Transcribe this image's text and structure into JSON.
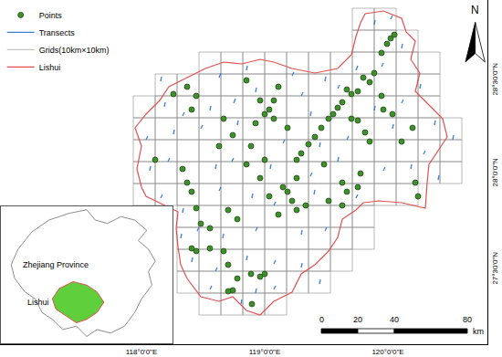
{
  "chart_data": {
    "type": "map",
    "xlim": [
      0,
      267
    ],
    "ylim": [
      0,
      188.5
    ],
    "xticks": [
      {
        "value": 77.5,
        "label": "118°0'0\"E"
      },
      {
        "value": 145,
        "label": "119°0'0\"E"
      },
      {
        "value": 212.5,
        "label": "120°0'0\"E"
      }
    ],
    "yticks": [
      {
        "value": 41,
        "label": "27°30'0\"N"
      },
      {
        "value": 93.5,
        "label": "28°0'0\"N"
      },
      {
        "value": 144.5,
        "label": "28°30'0\"N"
      }
    ],
    "grid": false,
    "legend": "upper left",
    "series": [
      {
        "name": "Points",
        "type": "scatter",
        "color": "#3f8f2a",
        "marker": "circle",
        "x": [
          214,
          216,
          212,
          209,
          205,
          202.5,
          199,
          196,
          192.5,
          190,
          187.5,
          185,
          182.5,
          180,
          176,
          172.5,
          169,
          165,
          162.5,
          192.5,
          196,
          200,
          202.5,
          209,
          210,
          215,
          220,
          226,
          227.5,
          229,
          197.5,
          196,
          190,
          187.5,
          135,
          152.5,
          150,
          147.5,
          150,
          145,
          157.5,
          142.5,
          140,
          120,
          127.5,
          122.5,
          107.5,
          105,
          102.5,
          95,
          85,
          100,
          102.5,
          105,
          107.5,
          110,
          115,
          125,
          130,
          142.5,
          147.5,
          155,
          157.5,
          160,
          162.5,
          152.5,
          167.5,
          177.5,
          180,
          187.5,
          137.5,
          135,
          145,
          162.5,
          105,
          107.5,
          115,
          125,
          130,
          127.5,
          125,
          137.5,
          142.5,
          145,
          138,
          122.5
        ],
        "y": [
          167.5,
          169.5,
          164.5,
          159.5,
          148.5,
          143.5,
          146,
          138.5,
          137,
          139.5,
          132.5,
          129.5,
          126,
          123.5,
          118.5,
          113.5,
          109.5,
          104.5,
          101,
          123.5,
          122.5,
          116,
          111,
          136,
          128.5,
          126,
          111,
          118.5,
          88.5,
          81,
          93.5,
          86,
          83.5,
          88.5,
          144.5,
          141,
          133.5,
          128.5,
          123.5,
          126,
          118.5,
          133.5,
          121,
          108.5,
          114.5,
          123.5,
          136,
          128.5,
          141,
          137,
          101,
          96,
          88.5,
          83.5,
          74.5,
          66,
          63.5,
          73.5,
          68.5,
          91,
          81,
          86,
          83.5,
          78.5,
          73.5,
          71,
          76,
          98.5,
          78.5,
          76,
          108.5,
          98.5,
          101,
          91,
          52.5,
          51,
          52.5,
          43.5,
          36,
          29.5,
          29,
          38.5,
          37,
          38.5,
          22,
          51
        ]
      },
      {
        "name": "Transects",
        "type": "segments",
        "color": "#3d7fd6",
        "segments": [
          [
            205,
            175,
            205.5,
            177.5
          ],
          [
            214,
            178,
            215,
            180
          ],
          [
            220,
            162,
            220.5,
            164.5
          ],
          [
            209,
            152,
            210,
            154
          ],
          [
            120,
            146,
            121,
            148.5
          ],
          [
            135,
            150,
            135.5,
            152.5
          ],
          [
            160,
            147,
            161,
            149
          ],
          [
            178,
            144,
            178.5,
            146.5
          ],
          [
            195,
            150,
            196,
            152.5
          ],
          [
            230,
            140,
            230.5,
            142.5
          ],
          [
            90,
            130,
            90.5,
            132.5
          ],
          [
            100,
            125,
            101,
            127
          ],
          [
            115,
            128,
            115.5,
            130.5
          ],
          [
            128,
            132,
            129,
            134.5
          ],
          [
            140,
            138,
            140.5,
            140.5
          ],
          [
            165,
            136,
            166,
            138
          ],
          [
            170,
            125,
            170.5,
            127.5
          ],
          [
            185,
            140,
            186,
            142
          ],
          [
            205,
            128,
            205.5,
            130.5
          ],
          [
            220,
            132,
            221,
            134
          ],
          [
            238,
            120,
            238.5,
            122.5
          ],
          [
            80,
            112,
            81,
            114
          ],
          [
            95,
            115,
            95.5,
            117.5
          ],
          [
            110,
            118,
            111,
            120
          ],
          [
            130,
            120,
            130.5,
            122.5
          ],
          [
            155,
            110,
            156,
            112
          ],
          [
            175,
            108,
            175.5,
            110.5
          ],
          [
            190,
            112,
            191,
            114
          ],
          [
            215,
            118,
            215.5,
            120.5
          ],
          [
            232,
            104,
            233,
            106
          ],
          [
            82,
            95,
            82.5,
            97.5
          ],
          [
            92,
            100,
            93,
            102
          ],
          [
            118,
            96,
            118.5,
            98.5
          ],
          [
            127,
            100,
            128,
            102
          ],
          [
            148,
            96,
            148.5,
            98.5
          ],
          [
            170,
            92,
            171,
            94
          ],
          [
            185,
            100,
            185.5,
            102.5
          ],
          [
            210,
            95,
            211,
            97
          ],
          [
            225,
            96,
            225.5,
            98.5
          ],
          [
            88,
            80,
            89,
            82
          ],
          [
            100,
            72,
            100.5,
            74.5
          ],
          [
            120,
            84,
            121,
            86
          ],
          [
            138,
            80,
            138.5,
            82.5
          ],
          [
            150,
            76,
            151,
            78
          ],
          [
            172,
            82,
            172.5,
            84.5
          ],
          [
            195,
            80,
            196,
            82
          ],
          [
            99,
            58,
            99.5,
            60.5
          ],
          [
            108,
            62,
            109,
            64
          ],
          [
            122,
            58,
            122.5,
            60.5
          ],
          [
            140,
            62,
            141,
            64
          ],
          [
            165,
            60,
            165.5,
            62.5
          ],
          [
            178,
            62,
            179,
            64
          ],
          [
            105,
            45,
            105.5,
            47.5
          ],
          [
            118,
            40,
            119,
            42
          ],
          [
            135,
            46,
            135.5,
            48.5
          ],
          [
            150,
            44,
            151,
            46
          ],
          [
            165,
            42,
            165.5,
            44.5
          ],
          [
            115,
            30,
            116,
            32
          ],
          [
            140,
            28,
            140.5,
            30.5
          ],
          [
            150,
            30,
            151,
            32
          ],
          [
            132,
            22,
            132.5,
            24.5
          ],
          [
            88,
            144,
            88.5,
            146.5
          ],
          [
            248,
            112,
            248.5,
            114.5
          ],
          [
            240,
            90,
            240.5,
            92.5
          ],
          [
            175,
            33,
            175.5,
            35.5
          ]
        ]
      },
      {
        "name": "Grids(10km×10km)",
        "type": "grid",
        "color": "#8c8c8c",
        "cell": 12,
        "x0": 73,
        "y0": 16,
        "rows": [
          [
            3,
            6
          ],
          [
            2,
            8
          ],
          [
            2,
            9
          ],
          [
            2,
            10
          ],
          [
            2,
            10
          ],
          [
            0,
            12
          ],
          [
            0,
            14
          ],
          [
            0,
            14
          ],
          [
            0,
            14
          ],
          [
            0,
            13
          ],
          [
            1,
            13
          ],
          [
            3,
            13
          ],
          [
            10,
            12
          ],
          [
            10,
            11
          ]
        ]
      },
      {
        "name": "Lishui",
        "type": "polygon",
        "color": "#e05050",
        "x": [
          200,
          210,
          220,
          222.5,
          227.5,
          225,
          230,
          227.5,
          235,
          242.5,
          245,
          240,
          235,
          234,
          233,
          220,
          207.5,
          199,
          195,
          187.5,
          185,
          180,
          172.5,
          165,
          160,
          150,
          142.5,
          135,
          127.5,
          120,
          110,
          102.5,
          99,
          97.5,
          96.5,
          97.5,
          87.5,
          80,
          77.5,
          75,
          77.5,
          74,
          80,
          87.5,
          92.5,
          102.5,
          112.5,
          122.5,
          132.5,
          142.5,
          150,
          160,
          172.5,
          185,
          192.5,
          195,
          197.5,
          200
        ],
        "y": [
          181,
          182.5,
          178.5,
          171,
          166,
          156,
          148.5,
          138.5,
          131,
          123.5,
          113.5,
          106,
          98.5,
          88.5,
          74.5,
          77.5,
          78.5,
          77.5,
          73.5,
          68.5,
          58.5,
          51,
          43.5,
          38.5,
          28.5,
          23.5,
          16,
          18.5,
          26,
          23.5,
          26,
          36,
          43.5,
          53.5,
          63.5,
          72.5,
          77.5,
          81,
          86,
          96,
          108.5,
          118.5,
          126,
          133.5,
          141,
          146,
          151,
          154.5,
          153.5,
          156,
          154.5,
          151,
          148.5,
          151,
          158.5,
          168.5,
          176,
          181
        ]
      }
    ],
    "north": "N",
    "scale_bar": {
      "unit": "km",
      "ticks": [
        0,
        20,
        40,
        80
      ]
    },
    "inset": {
      "xlim": [
        0,
        100
      ],
      "ylim": [
        0,
        80
      ],
      "tick_labels": false,
      "regions": [
        {
          "name": "Zhejiang Province",
          "color": "#8c8c8c",
          "x": [
            10,
            18,
            28,
            40,
            50,
            55,
            62,
            70,
            78,
            85,
            80,
            86,
            90,
            86,
            88,
            82,
            78,
            72,
            64,
            56,
            50,
            44,
            36,
            30,
            24,
            20,
            14,
            8,
            6,
            10
          ],
          "y": [
            55,
            65,
            72,
            76,
            78,
            72,
            70,
            74,
            72,
            66,
            60,
            55,
            48,
            42,
            34,
            26,
            18,
            10,
            6,
            8,
            4,
            10,
            8,
            14,
            18,
            26,
            30,
            38,
            46,
            55
          ]
        },
        {
          "name": "Lishui",
          "color": "#5fd03c",
          "x": [
            34,
            42,
            50,
            56,
            60,
            56,
            50,
            44,
            38,
            32,
            30,
            34
          ],
          "y": [
            32,
            36,
            34,
            30,
            24,
            18,
            14,
            12,
            16,
            20,
            26,
            32
          ]
        }
      ]
    }
  }
}
